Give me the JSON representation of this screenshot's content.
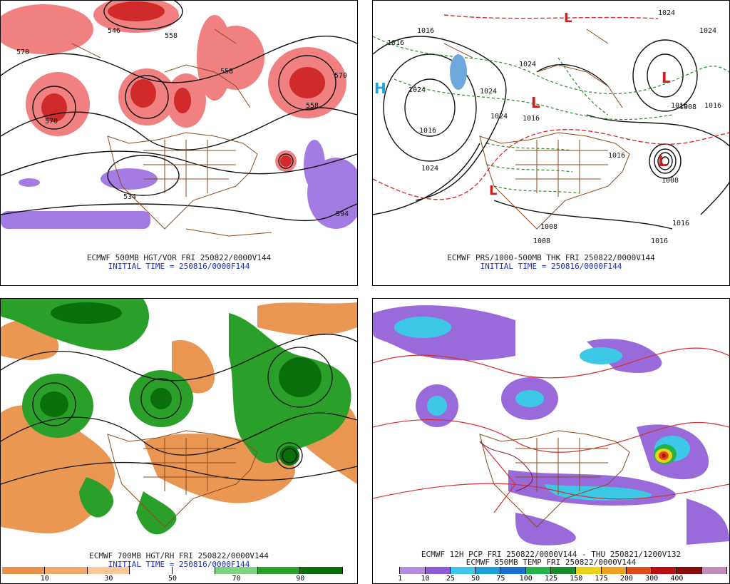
{
  "panels": {
    "p1": {
      "caption": "ECMWF 500MB HGT/VOR FRI 250822/0000V144",
      "init": "INITIAL TIME = 250816/0000F144",
      "contour_labels": [
        "570",
        "558",
        "546",
        "558",
        "570",
        "570",
        "558",
        "534",
        "594"
      ]
    },
    "p2": {
      "caption": "ECMWF PRS/1000-500MB THK FRI 250822/0000V144",
      "init": "INITIAL TIME = 250816/0000F144",
      "contour_labels": [
        "1016",
        "1016",
        "1024",
        "1024",
        "1016",
        "1024",
        "1024",
        "1024",
        "1016",
        "1016",
        "1008",
        "1008",
        "1016",
        "1016",
        "1008",
        "1008",
        "1016",
        "1016",
        "1024",
        "1024"
      ],
      "high_symbol": "H",
      "low_symbol": "L"
    },
    "p3": {
      "caption": "ECMWF 700MB HGT/RH FRI 250822/0000V144",
      "init": "INITIAL TIME = 250816/0000F144",
      "colorbar": {
        "colors": [
          "#e8914a",
          "#f0a868",
          "#f7c89a",
          "#ffffff",
          "#ffffff",
          "#7fd27f",
          "#2aa02a",
          "#0a6e0a"
        ],
        "ticks": [
          "10",
          "30",
          "50",
          "70",
          "90"
        ]
      }
    },
    "p4": {
      "caption": "ECMWF 12H PCP FRI 250822/0000V144 - THU 250821/1200V132",
      "caption2": "ECMWF 850MB TEMP FRI 250822/0000V144",
      "colorbar": {
        "colors": [
          "#ffffff",
          "#b58be0",
          "#8e5bd6",
          "#3ec8e8",
          "#1aa0d0",
          "#1a6fd0",
          "#24b24a",
          "#1a8a2a",
          "#e8d21a",
          "#f0a020",
          "#e04a1a",
          "#b81010",
          "#8a0a0a",
          "#c38bb8"
        ],
        "ticks": [
          "1",
          "10",
          "25",
          "50",
          "75",
          "100",
          "125",
          "150",
          "175",
          "200",
          "300",
          "400"
        ]
      }
    }
  }
}
